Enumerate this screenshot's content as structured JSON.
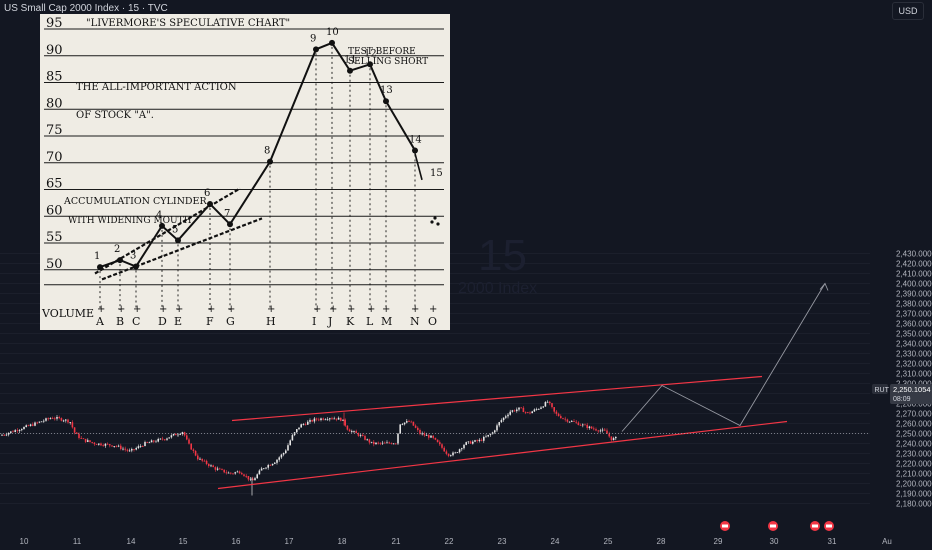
{
  "header": {
    "title": "US Small Cap 2000 Index · 15 · TVC",
    "currency": "USD"
  },
  "watermark": {
    "big": "15",
    "small": "2000 Index"
  },
  "price_tag": {
    "symbol": "RUT",
    "price": "2,250.1054",
    "countdown": "08:09"
  },
  "colors": {
    "bg": "#131722",
    "up": "#e6e6e6",
    "down": "#f23645",
    "channel": "#f23645",
    "projection": "#9598a1"
  },
  "chart_data": {
    "type": "candlestick",
    "title": "US Small Cap 2000 Index · 15 · TVC",
    "ylim": [
      2175,
      2440
    ],
    "y_ticks": [
      "2,180.0000",
      "2,190.0000",
      "2,200.0000",
      "2,210.0000",
      "2,220.0000",
      "2,230.0000",
      "2,240.0000",
      "2,250.0000",
      "2,260.0000",
      "2,270.0000",
      "2,280.0000",
      "2,290.0000",
      "2,300.0000",
      "2,310.0000",
      "2,320.0000",
      "2,330.0000",
      "2,340.0000",
      "2,350.0000",
      "2,360.0000",
      "2,370.0000",
      "2,380.0000",
      "2,390.0000",
      "2,400.0000",
      "2,410.0000",
      "2,420.0000",
      "2,430.0000"
    ],
    "x_ticks": [
      "10",
      "11",
      "14",
      "15",
      "16",
      "17",
      "18",
      "21",
      "22",
      "23",
      "24",
      "25",
      "28",
      "29",
      "30",
      "31",
      "Au"
    ],
    "last_price": 2250.1054,
    "price_path": [
      [
        0,
        2248
      ],
      [
        30,
        2258
      ],
      [
        52,
        2266
      ],
      [
        63,
        2264
      ],
      [
        70,
        2262
      ],
      [
        75,
        2250
      ],
      [
        82,
        2244
      ],
      [
        95,
        2240
      ],
      [
        115,
        2238
      ],
      [
        130,
        2232
      ],
      [
        145,
        2240
      ],
      [
        165,
        2245
      ],
      [
        183,
        2252
      ],
      [
        188,
        2240
      ],
      [
        198,
        2225
      ],
      [
        215,
        2215
      ],
      [
        230,
        2210
      ],
      [
        240,
        2212
      ],
      [
        245,
        2208
      ],
      [
        252,
        2202
      ],
      [
        262,
        2215
      ],
      [
        275,
        2222
      ],
      [
        285,
        2232
      ],
      [
        292,
        2247
      ],
      [
        300,
        2258
      ],
      [
        315,
        2264
      ],
      [
        330,
        2266
      ],
      [
        342,
        2264
      ],
      [
        348,
        2254
      ],
      [
        360,
        2248
      ],
      [
        372,
        2240
      ],
      [
        385,
        2240
      ],
      [
        396,
        2241
      ],
      [
        400,
        2260
      ],
      [
        410,
        2262
      ],
      [
        420,
        2250
      ],
      [
        432,
        2246
      ],
      [
        440,
        2238
      ],
      [
        448,
        2229
      ],
      [
        455,
        2230
      ],
      [
        465,
        2240
      ],
      [
        480,
        2243
      ],
      [
        492,
        2250
      ],
      [
        500,
        2262
      ],
      [
        510,
        2272
      ],
      [
        520,
        2275
      ],
      [
        528,
        2270
      ],
      [
        540,
        2276
      ],
      [
        548,
        2282
      ],
      [
        555,
        2270
      ],
      [
        565,
        2264
      ],
      [
        578,
        2260
      ],
      [
        592,
        2255
      ],
      [
        605,
        2252
      ],
      [
        612,
        2244
      ],
      [
        618,
        2246
      ]
    ],
    "channel": {
      "upper": [
        [
          2263,
          2307
        ]
      ],
      "lower": [
        [
          2195,
          2262
        ]
      ],
      "x_span": [
        "16",
        "29"
      ]
    },
    "projection": [
      [
        2252,
        2298,
        2258,
        2400
      ]
    ]
  },
  "inset": {
    "title": "\"LIVERMORE'S  SPECULATIVE  CHART\"",
    "caption1": "THE ALL-IMPORTANT ACTION",
    "caption2": "OF  STOCK \"A\".",
    "caption3": "ACCUMULATION  CYLINDER",
    "caption4": "WITH  WIDENING  MOUTH",
    "note": "TEST  BEFORE SELLING  SHORT",
    "volume_label": "VOLUME",
    "y_levels": [
      "95",
      "90",
      "85",
      "80",
      "75",
      "70",
      "65",
      "60",
      "55",
      "50"
    ],
    "letters": [
      "A",
      "B",
      "C",
      "D",
      "E",
      "F",
      "G",
      "H",
      "I",
      "J",
      "K",
      "L",
      "M",
      "N",
      "O"
    ],
    "points": [
      {
        "n": "1",
        "v": 50.5
      },
      {
        "n": "2",
        "v": 51.8
      },
      {
        "n": "3",
        "v": 50.6
      },
      {
        "n": "4",
        "v": 58.2
      },
      {
        "n": "5",
        "v": 55.5
      },
      {
        "n": "6",
        "v": 62.3
      },
      {
        "n": "7",
        "v": 58.5
      },
      {
        "n": "8",
        "v": 70.2
      },
      {
        "n": "9",
        "v": 91.2
      },
      {
        "n": "10",
        "v": 92.4
      },
      {
        "n": "11",
        "v": 87.2
      },
      {
        "n": "12",
        "v": 88.4
      },
      {
        "n": "13",
        "v": 81.5
      },
      {
        "n": "14",
        "v": 72.3
      },
      {
        "n": "15",
        "v": 66.0
      }
    ]
  }
}
